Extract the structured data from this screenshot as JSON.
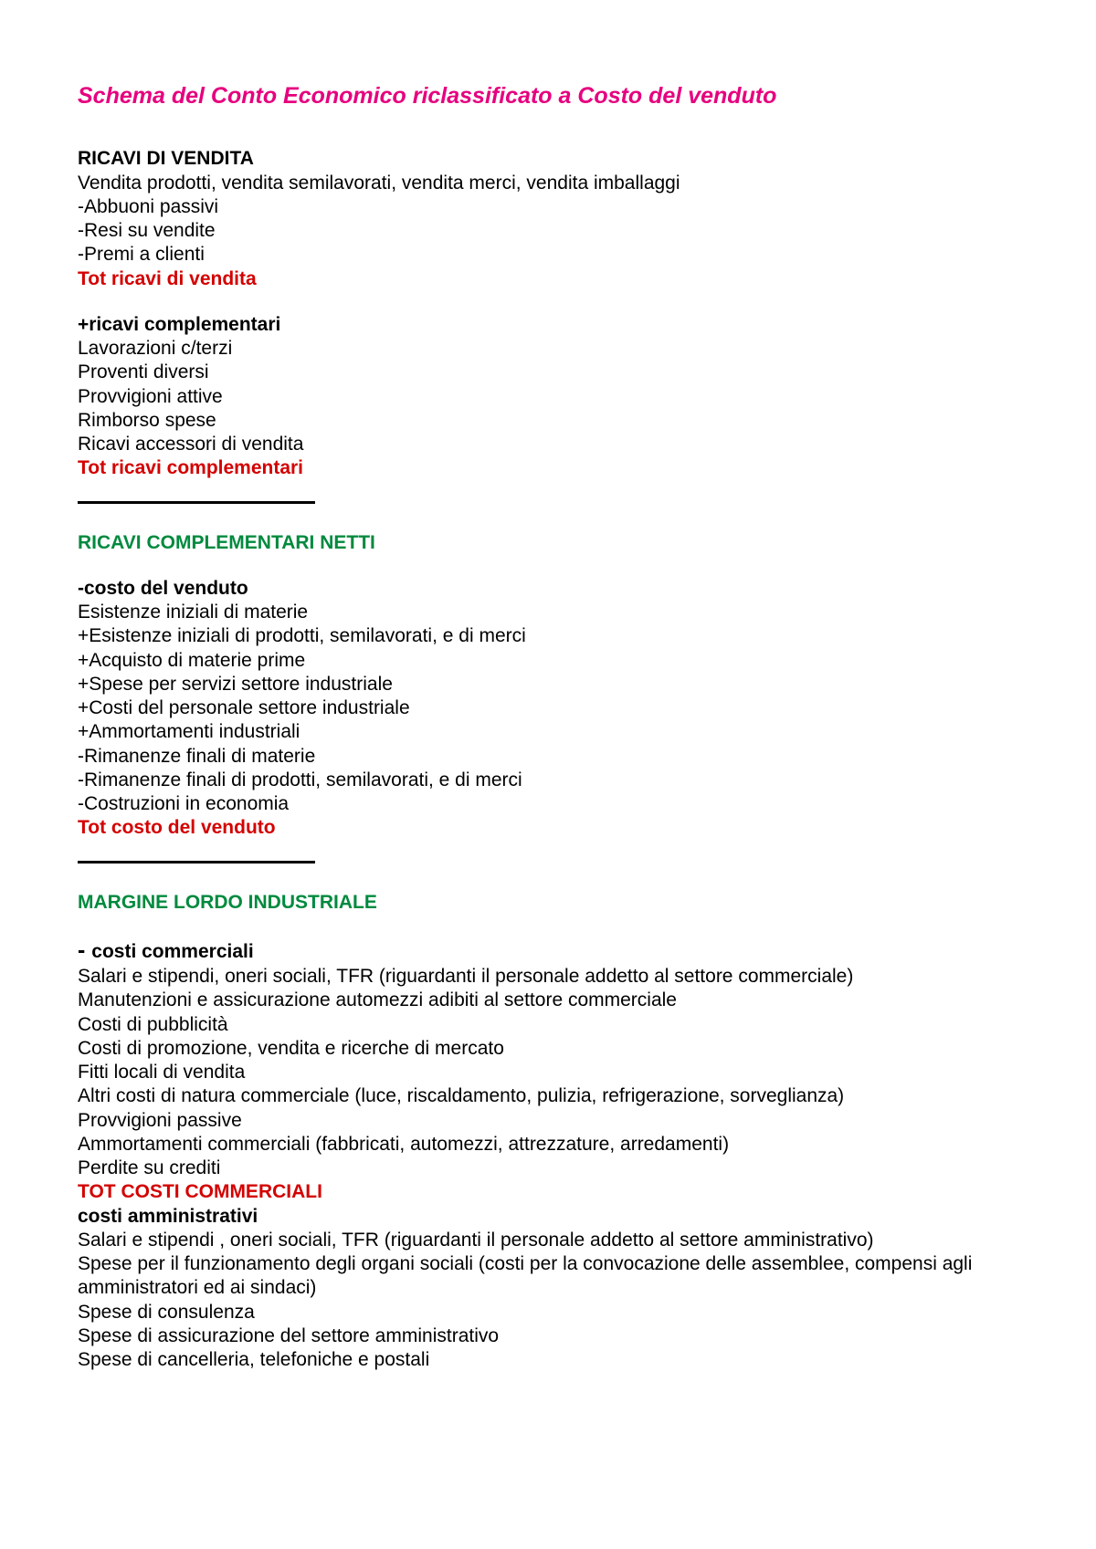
{
  "colors": {
    "title": "#e6007e",
    "heading_black": "#000000",
    "heading_green": "#008a3e",
    "total_red": "#d40000",
    "body_text": "#000000"
  },
  "title": "Schema del Conto Economico riclassificato a Costo del venduto",
  "sections": {
    "ricavi_vendita": {
      "heading": "RICAVI DI VENDITA",
      "lines": [
        "Vendita prodotti, vendita semilavorati, vendita merci, vendita imballaggi",
        "-Abbuoni passivi",
        "-Resi su vendite",
        "-Premi a clienti"
      ],
      "total": "Tot ricavi di vendita"
    },
    "ricavi_complementari": {
      "heading": "+ricavi complementari",
      "lines": [
        "Lavorazioni c/terzi",
        "Proventi diversi",
        "Provvigioni attive",
        "Rimborso spese",
        "Ricavi accessori di vendita"
      ],
      "total": "Tot ricavi complementari"
    },
    "ricavi_complementari_netti": {
      "heading": "RICAVI COMPLEMENTARI NETTI"
    },
    "costo_venduto": {
      "heading": "-costo del venduto",
      "lines": [
        "Esistenze iniziali di materie",
        "+Esistenze iniziali di prodotti, semilavorati, e di merci",
        "+Acquisto di materie prime",
        "+Spese per servizi settore industriale",
        "+Costi del personale settore industriale",
        "+Ammortamenti industriali",
        "-Rimanenze finali di materie",
        "-Rimanenze finali di prodotti, semilavorati, e di merci",
        "-Costruzioni in economia"
      ],
      "total": "Tot costo del venduto"
    },
    "margine_lordo": {
      "heading": "MARGINE LORDO INDUSTRIALE"
    },
    "costi_commerciali": {
      "heading": "costi commerciali",
      "lines": [
        "Salari e stipendi, oneri sociali, TFR (riguardanti il personale addetto al settore commerciale)",
        "Manutenzioni e assicurazione automezzi adibiti al settore commerciale",
        "Costi di pubblicità",
        "Costi di promozione, vendita e ricerche di mercato",
        "Fitti locali di vendita",
        "Altri costi di natura commerciale (luce, riscaldamento, pulizia, refrigerazione, sorveglianza)",
        "Provvigioni passive",
        "Ammortamenti commerciali (fabbricati, automezzi, attrezzature, arredamenti)",
        "Perdite su crediti"
      ],
      "total": "TOT COSTI COMMERCIALI"
    },
    "costi_amministrativi": {
      "heading": "costi amministrativi",
      "lines": [
        "Salari e stipendi , oneri sociali, TFR (riguardanti il personale addetto al settore amministrativo)",
        "Spese per il funzionamento degli organi sociali (costi per la convocazione delle assemblee, compensi agli amministratori ed ai sindaci)",
        "Spese di consulenza",
        "Spese di assicurazione del settore amministrativo",
        "Spese di cancelleria, telefoniche e postali"
      ]
    }
  }
}
